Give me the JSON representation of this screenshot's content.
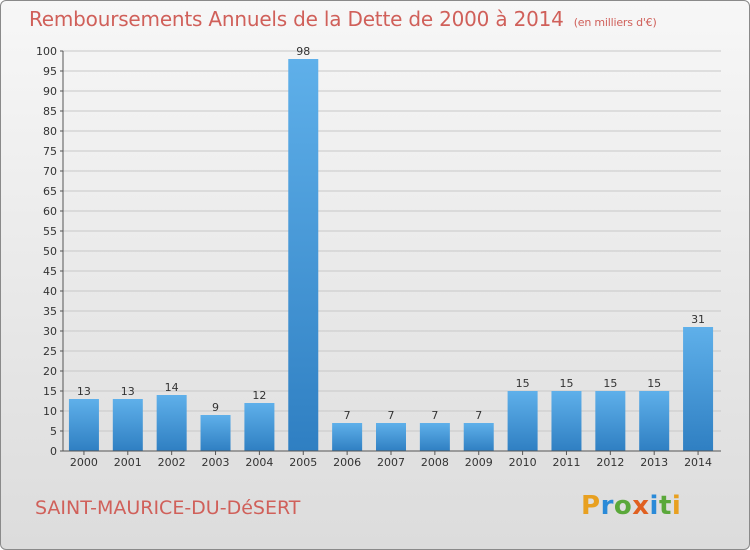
{
  "header": {
    "title": "Remboursements Annuels de la Dette de 2000 à 2014",
    "unit": "(en milliers d'€)"
  },
  "footer": {
    "place": "SAINT-MAURICE-DU-DéSERT",
    "logo_letters": [
      "P",
      "r",
      "o",
      "x",
      "i",
      "t",
      "i"
    ],
    "logo_colors": [
      "#e8a020",
      "#2a8ad8",
      "#5aa83a",
      "#e06020",
      "#2a8ad8",
      "#5aa83a",
      "#e8a020"
    ]
  },
  "chart_data": {
    "type": "bar",
    "categories": [
      "2000",
      "2001",
      "2002",
      "2003",
      "2004",
      "2005",
      "2006",
      "2007",
      "2008",
      "2009",
      "2010",
      "2011",
      "2012",
      "2013",
      "2014"
    ],
    "values": [
      13,
      13,
      14,
      9,
      12,
      98,
      7,
      7,
      7,
      7,
      15,
      15,
      15,
      15,
      31
    ],
    "ylim": [
      0,
      100
    ],
    "yticks": [
      0,
      5,
      10,
      15,
      20,
      25,
      30,
      35,
      40,
      45,
      50,
      55,
      60,
      65,
      70,
      75,
      80,
      85,
      90,
      95,
      100
    ],
    "grid": true,
    "bar_color_top": "#5fb0ea",
    "bar_color_bottom": "#2f7fc2"
  }
}
